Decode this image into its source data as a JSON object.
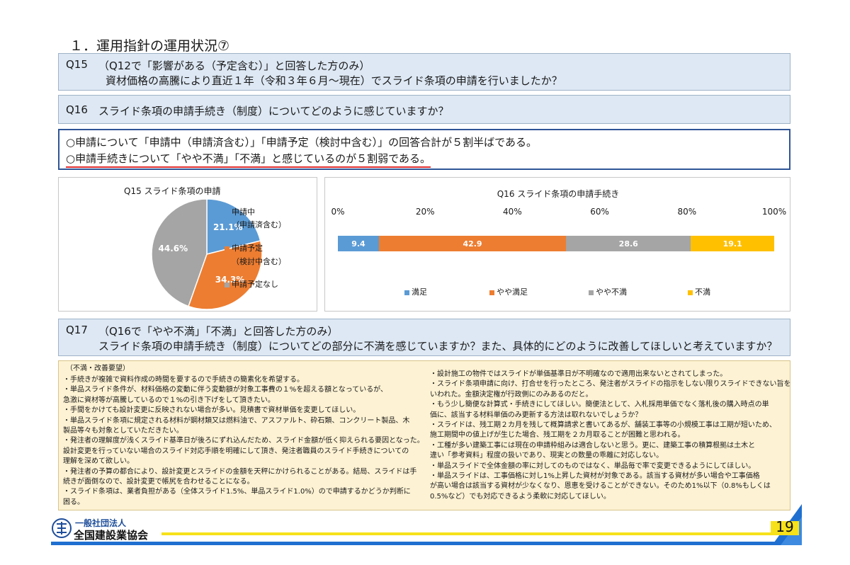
{
  "page_title": "１．運用指針の運用状況⑦",
  "q15": {
    "label": "Q15",
    "line1": "（Q12で「影響がある（予定含む）」と回答した方のみ）",
    "line2": "資材価格の高騰により直近１年（令和３年６月～現在）でスライド条項の申請を行いましたか？"
  },
  "q16": {
    "label": "Q16",
    "text": "スライド条項の申請手続き（制度）についてどのように感じていますか？"
  },
  "summary": {
    "line1": "○申請について「申請中（申請済含む）」「申請予定（検討中含む）」の回答合計が５割半ばである。",
    "line2": "○申請手続きについて「やや不満」「不満」と感じているのが５割弱である。"
  },
  "chart_data": [
    {
      "type": "pie",
      "title": "Q15 スライド条項の申請",
      "labels": [
        "申請中（申請済含む）",
        "申請予定（検討中含む）",
        "申請予定なし"
      ],
      "legend_lines": [
        [
          "申請中",
          "（申請済含む）"
        ],
        [
          "申請予定",
          "（検討中含む）"
        ],
        [
          "申請予定なし"
        ]
      ],
      "values": [
        21.1,
        34.3,
        44.6
      ],
      "value_labels": [
        "21.1%",
        "34.3%",
        "44.6%"
      ],
      "colors": [
        "#5b9bd5",
        "#ed7d31",
        "#a5a5a5"
      ],
      "legend": "right"
    },
    {
      "type": "bar",
      "orientation": "horizontal-stacked-100",
      "title": "Q16 スライド条項の申請手続き",
      "x_ticks": [
        "0%",
        "20%",
        "40%",
        "60%",
        "80%",
        "100%"
      ],
      "xlim": [
        0,
        100
      ],
      "series": [
        {
          "name": "満足",
          "value": 9.4,
          "label": "9.4",
          "color": "#5b9bd5"
        },
        {
          "name": "やや満足",
          "value": 42.9,
          "label": "42.9",
          "color": "#ed7d31"
        },
        {
          "name": "やや不満",
          "value": 28.6,
          "label": "28.6",
          "color": "#a5a5a5"
        },
        {
          "name": "不満",
          "value": 19.1,
          "label": "19.1",
          "color": "#ffc000"
        }
      ],
      "legend": "bottom"
    }
  ],
  "q17": {
    "label": "Q17",
    "line1": "（Q16で「やや不満」「不満」と回答した方のみ）",
    "line2": "スライド条項の申請手続き（制度）についてどの部分に不満を感じていますか？また、具体的にどのように改善してほしいと考えていますか？"
  },
  "comments": {
    "heading": "（不満・改善要望）",
    "left": [
      "・手続きが複雑で資料作成の時間を要するので手続きの簡素化を希望する。",
      "・単品スライド条件が、材料価格の変動に伴う変動額が対象工事費の１%を超える額となっているが、",
      "急激に資材等が高騰しているので１%の引き下げをして頂きたい。",
      "・手間をかけても設計変更に反映されない場合が多い。見積書で資材単価を変更してほしい。",
      "・単品スライド条項に規定される材料が鋼材類又は燃料油で、アスファルト、砕石類、コンクリート製品、木",
      "製品等々も対象としていただきたい。",
      "・発注者の理解度が浅くスライド基準日が後ろにずれ込んだため、スライド金額が低く抑えられる要因となった。",
      "設計変更を行っていない場合のスライド対応手順を明確にして頂き、発注者職員のスライド手続きについての",
      "理解を深めて欲しい。",
      "・発注者の予算の都合により、設計変更とスライドの金額を天秤にかけられることがある。結局、スライドは手",
      "続きが面倒なので、設計変更で帳尻を合わせることになる。",
      "・スライド条項は、業者負担がある（全体スライド1.5%、単品スライド1.0%）ので申請するかどうか判断に",
      "困る。"
    ],
    "right": [
      "・設計施工の物件ではスライドが単価基準日が不明確なので適用出来ないとされてしまった。",
      "・スライド条項申請に向け、打合せを行ったところ、発注者がスライドの指示をしない限りスライドできない旨を",
      "いわれた。金額決定権が行政側にのみあるのだと。",
      "・もう少し簡便な計算式・手続きにしてほしい。簡便法として、入札採用単価でなく落札後の購入時点の単",
      "価に、該当する材料単価のみ更新する方法は取れないでしょうか？",
      "・スライドは、残工期２カ月を残して概算請求と書いてあるが、舗装工事等の小規模工事は工期が短いため、",
      "施工期間中の値上げが生じた場合、残工期を２カ月取ることが困難と思われる。",
      "・工種が多い建築工事には現在の申請枠組みは適合しないと思う。更に、建築工事の積算根拠は土木と",
      "違い「参考資料」程度の扱いであり、現実との数量の乖離に対応しない。",
      "・単品スライドで全体金額の率に対してのものではなく、単品毎で率で変更できるようにしてほしい。",
      "・単品スライドは、工事価格に対し1%上昇した資材が対象である。該当する資材が多い場合や工事価格",
      "が高い場合は該当する資材が少なくなり、恩恵を受けることができない。そのため1%以下（0.8%もしくは",
      "0.5%など）でも対応できるよう柔軟に対応してほしい。"
    ]
  },
  "footer": {
    "org_small": "一般社団法人",
    "org_name": "全国建設業協会",
    "page_number": "19"
  },
  "colors": {
    "question_bg": "#dde8f4",
    "summary_border": "#2f5597",
    "underline": "#e03030",
    "comment_bg": "#fdf2d3",
    "footer_yellow": "#f6e11a",
    "footer_blue": "#1f6fd0"
  }
}
